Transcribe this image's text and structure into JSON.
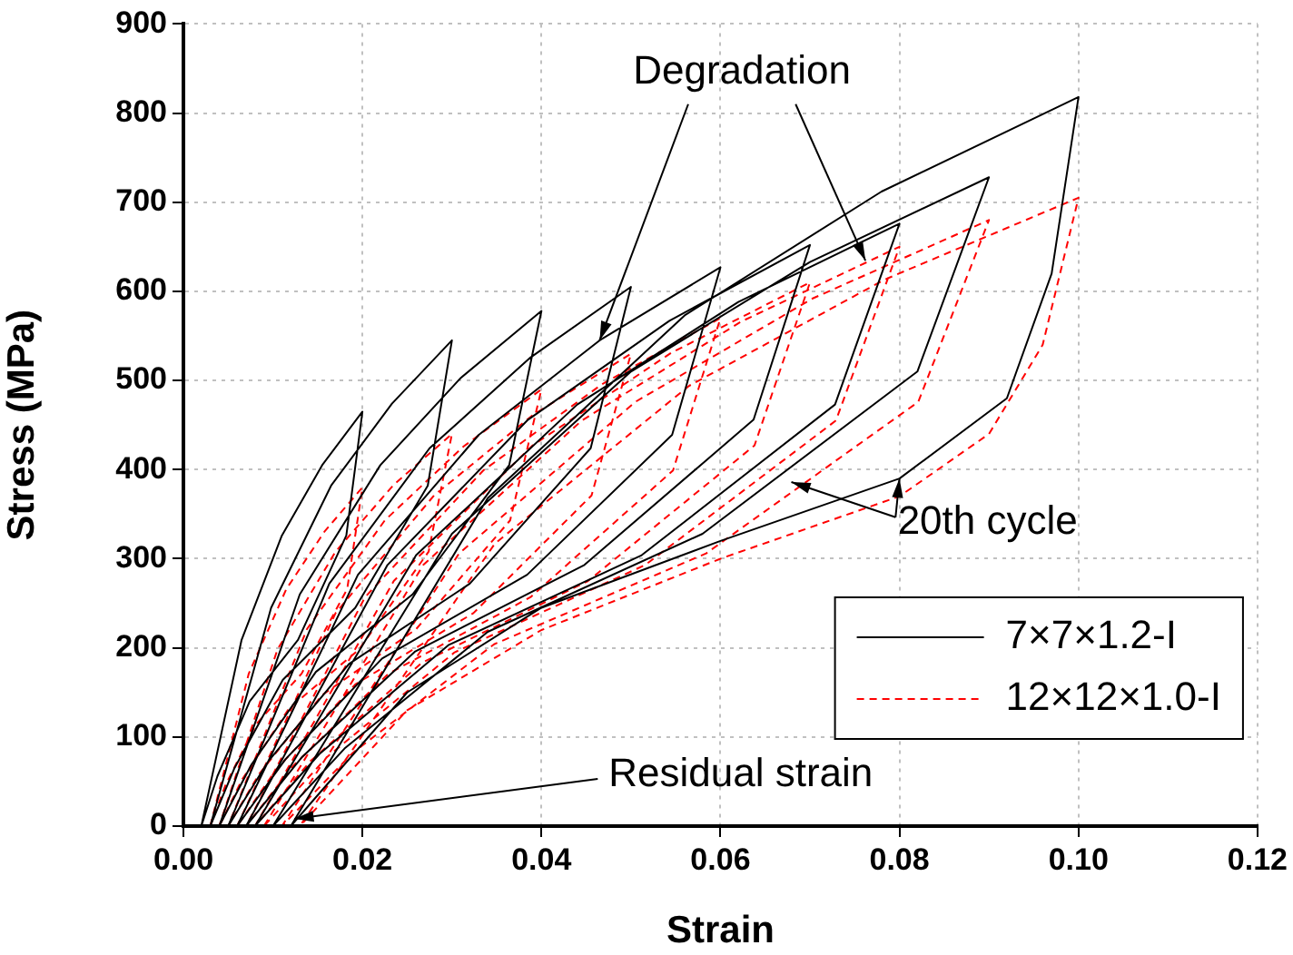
{
  "chart_data": {
    "type": "line",
    "xlabel": "Strain",
    "ylabel": "Stress (MPa)",
    "xlim": [
      0,
      0.12
    ],
    "xticks": [
      {
        "value": 0,
        "label": "0.00"
      },
      {
        "value": 0.02,
        "label": "0.02"
      },
      {
        "value": 0.04,
        "label": "0.04"
      },
      {
        "value": 0.06,
        "label": "0.06"
      },
      {
        "value": 0.08,
        "label": "0.08"
      },
      {
        "value": 0.1,
        "label": "0.10"
      },
      {
        "value": 0.12,
        "label": "0.12"
      }
    ],
    "ylim": [
      0,
      900
    ],
    "yticks": [
      0,
      100,
      200,
      300,
      400,
      500,
      600,
      700,
      800,
      900
    ],
    "grid": true,
    "legend": "bottom right",
    "marker": "none",
    "annotations": [
      {
        "text": "Degradation",
        "x": 0.0465,
        "y": 545
      },
      {
        "text": "20th cycle",
        "x": 0.08,
        "y": 390
      },
      {
        "text": "Residual strain",
        "x": 0.012,
        "y": 0
      }
    ],
    "series": [
      {
        "name": "7×7×1.2-I",
        "color": "#000000",
        "line_style": "solid",
        "x": [
          0.002,
          0.0065,
          0.011,
          0.0155,
          0.02,
          0.0182,
          0.0128,
          0.0074,
          0.0038,
          0.002,
          0.003,
          0.0098,
          0.0165,
          0.0233,
          0.03,
          0.0273,
          0.0192,
          0.0111,
          0.0057,
          0.003,
          0.004,
          0.013,
          0.022,
          0.031,
          0.04,
          0.0364,
          0.0256,
          0.0148,
          0.0076,
          0.004,
          0.005,
          0.0163,
          0.0275,
          0.0388,
          0.05,
          0.0455,
          0.032,
          0.0185,
          0.0095,
          0.005,
          0.006,
          0.0195,
          0.033,
          0.0465,
          0.06,
          0.0546,
          0.0384,
          0.0222,
          0.0114,
          0.006,
          0.007,
          0.0228,
          0.0385,
          0.0543,
          0.07,
          0.0637,
          0.0448,
          0.0259,
          0.0133,
          0.007,
          0.008,
          0.026,
          0.044,
          0.062,
          0.08,
          0.0728,
          0.0512,
          0.0296,
          0.0152,
          0.008,
          0.01,
          0.03,
          0.05,
          0.07,
          0.09,
          0.082,
          0.058,
          0.034,
          0.018,
          0.01,
          0.012,
          0.034,
          0.056,
          0.078,
          0.1,
          0.097,
          0.092,
          0.08,
          0.06,
          0.04,
          0.025,
          0.012
        ],
        "values": [
          0,
          209,
          326,
          405,
          465,
          326,
          209,
          140,
          56,
          0,
          0,
          245,
          382,
          474,
          545,
          382,
          245,
          164,
          65,
          0,
          0,
          260,
          405,
          503,
          578,
          405,
          260,
          173,
          69,
          0,
          0,
          272,
          424,
          526,
          605,
          424,
          272,
          182,
          73,
          0,
          0,
          282,
          439,
          545,
          627,
          439,
          282,
          188,
          75,
          0,
          0,
          293,
          456,
          567,
          652,
          456,
          293,
          196,
          78,
          0,
          0,
          304,
          473,
          588,
          676,
          473,
          304,
          203,
          81,
          0,
          0,
          328,
          510,
          633,
          728,
          510,
          328,
          218,
          87,
          0,
          0,
          368,
          573,
          712,
          818,
          620,
          480,
          390,
          320,
          245,
          150,
          0
        ]
      },
      {
        "name": "12×12×1.0-I",
        "color": "#ff0000",
        "line_style": "dashed",
        "x": [
          0.003,
          0.0073,
          0.0115,
          0.0158,
          0.02,
          0.0183,
          0.0132,
          0.0081,
          0.0047,
          0.003,
          0.004,
          0.0105,
          0.017,
          0.0235,
          0.03,
          0.0274,
          0.0196,
          0.0118,
          0.0066,
          0.004,
          0.005,
          0.0138,
          0.0225,
          0.0313,
          0.04,
          0.0365,
          0.026,
          0.0155,
          0.0085,
          0.005,
          0.006,
          0.017,
          0.028,
          0.039,
          0.05,
          0.0456,
          0.0324,
          0.0192,
          0.0104,
          0.006,
          0.007,
          0.0203,
          0.0335,
          0.0468,
          0.06,
          0.0547,
          0.0388,
          0.0229,
          0.0123,
          0.007,
          0.008,
          0.0235,
          0.039,
          0.0545,
          0.07,
          0.0638,
          0.0452,
          0.0266,
          0.0142,
          0.008,
          0.009,
          0.0268,
          0.0445,
          0.0623,
          0.08,
          0.0729,
          0.0516,
          0.0303,
          0.0161,
          0.009,
          0.011,
          0.0308,
          0.0505,
          0.0703,
          0.09,
          0.0821,
          0.0584,
          0.0347,
          0.0189,
          0.011,
          0.013,
          0.0348,
          0.0565,
          0.0783,
          0.1,
          0.096,
          0.09,
          0.08,
          0.06,
          0.04,
          0.025,
          0.013
        ],
        "values": [
          0,
          171,
          266,
          331,
          380,
          266,
          171,
          114,
          46,
          0,
          0,
          198,
          308,
          383,
          440,
          308,
          198,
          132,
          53,
          0,
          0,
          221,
          343,
          426,
          490,
          343,
          221,
          147,
          59,
          0,
          0,
          239,
          371,
          461,
          530,
          371,
          239,
          159,
          64,
          0,
          0,
          257,
          399,
          496,
          570,
          399,
          257,
          171,
          68,
          0,
          0,
          275,
          427,
          531,
          610,
          427,
          275,
          183,
          73,
          0,
          0,
          293,
          455,
          566,
          650,
          455,
          293,
          195,
          78,
          0,
          0,
          306,
          476,
          592,
          680,
          476,
          306,
          204,
          82,
          0,
          0,
          317,
          494,
          613,
          705,
          540,
          440,
          370,
          300,
          220,
          130,
          0
        ]
      }
    ]
  }
}
